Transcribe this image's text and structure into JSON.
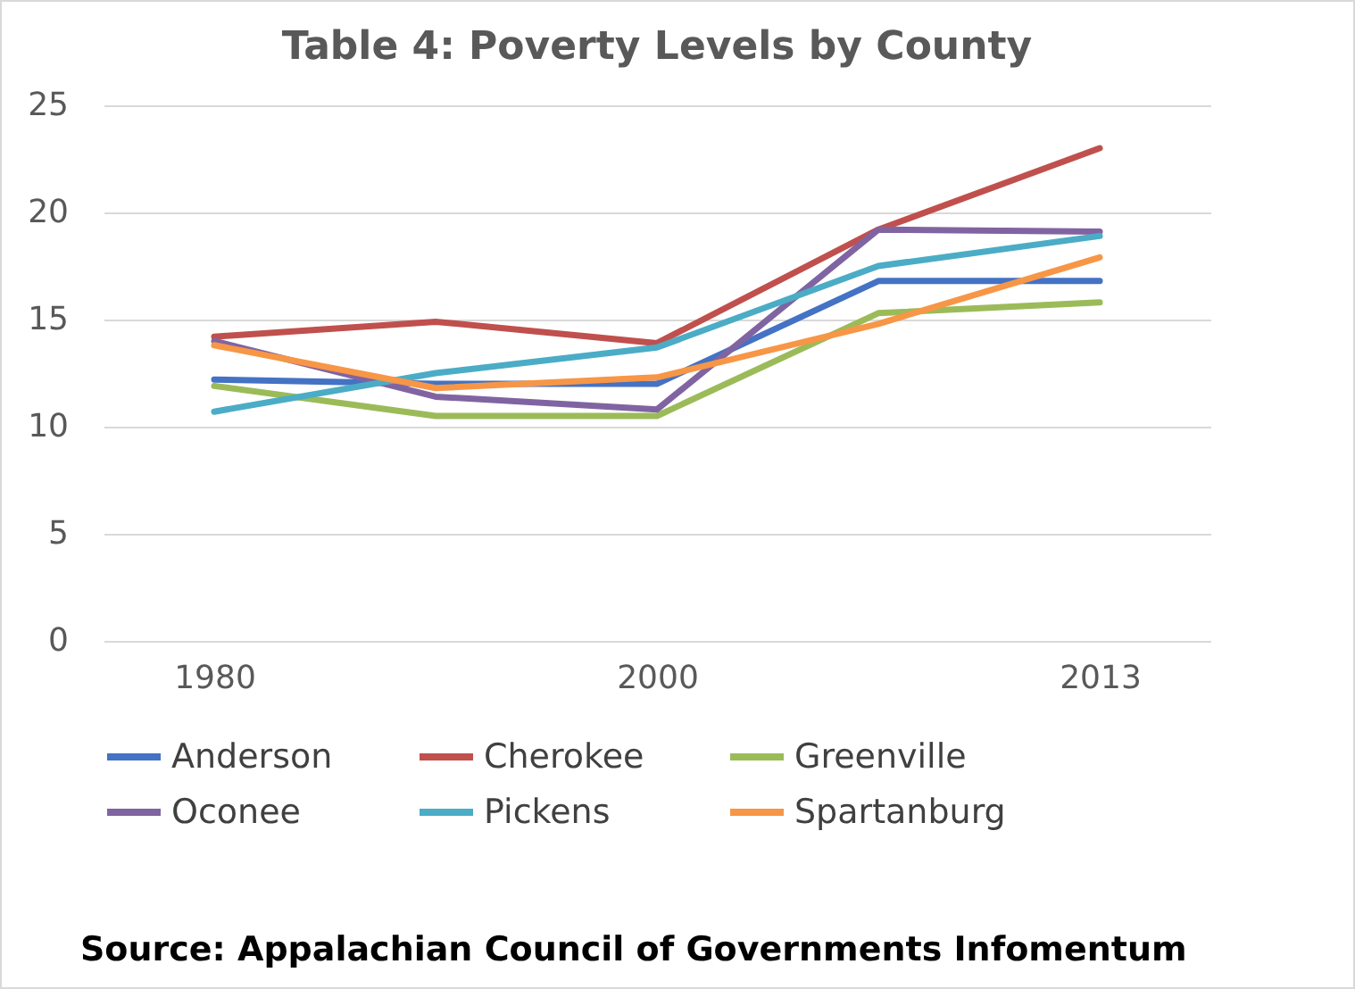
{
  "chart_data": {
    "type": "line",
    "title": "Table 4: Poverty Levels by County",
    "categories": [
      "1980",
      null,
      "2000",
      null,
      "2013"
    ],
    "series": [
      {
        "name": "Anderson",
        "color": "#4472c4",
        "values": [
          12.2,
          12.0,
          12.0,
          16.8,
          16.8
        ]
      },
      {
        "name": "Cherokee",
        "color": "#c0504d",
        "values": [
          14.2,
          14.9,
          13.9,
          19.2,
          23.0
        ]
      },
      {
        "name": "Greenville",
        "color": "#9bbb59",
        "values": [
          11.9,
          10.5,
          10.5,
          15.3,
          15.8
        ]
      },
      {
        "name": "Oconee",
        "color": "#8064a2",
        "values": [
          14.0,
          11.4,
          10.8,
          19.2,
          19.1
        ]
      },
      {
        "name": "Pickens",
        "color": "#4bacc6",
        "values": [
          10.7,
          12.5,
          13.7,
          17.5,
          18.9
        ]
      },
      {
        "name": "Spartanburg",
        "color": "#f79646",
        "values": [
          13.8,
          11.8,
          12.3,
          14.8,
          17.9
        ]
      }
    ],
    "ylim": [
      0,
      25
    ],
    "yticks": [
      0,
      5,
      10,
      15,
      20,
      25
    ],
    "grid": "y",
    "legend": "bottom",
    "annotations": [
      "Source: Appalachian Council of Governments Infomentum"
    ]
  }
}
